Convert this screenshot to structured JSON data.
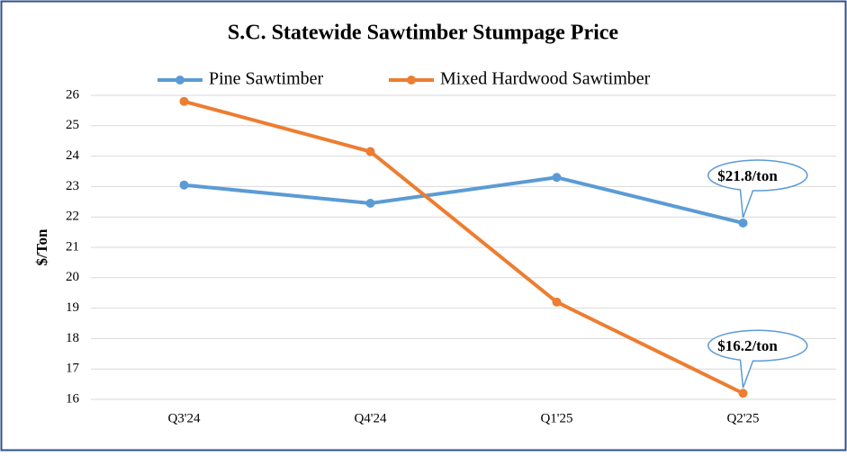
{
  "chart_data": {
    "type": "line",
    "title": "S.C. Statewide Sawtimber Stumpage Price",
    "y_label": "$/Ton",
    "categories": [
      "Q3'24",
      "Q4'24",
      "Q1'25",
      "Q2'25"
    ],
    "series": [
      {
        "name": "Pine Sawtimber",
        "color": "#5b9bd5",
        "values": [
          23.05,
          22.45,
          23.3,
          21.8
        ],
        "value_labels": [
          null,
          null,
          null,
          "$21.8/ton"
        ]
      },
      {
        "name": "Mixed Hardwood Sawtimber",
        "color": "#ed7d31",
        "values": [
          25.8,
          24.15,
          19.2,
          16.2
        ],
        "value_labels": [
          null,
          null,
          null,
          "$16.2/ton"
        ]
      }
    ],
    "ylim": [
      16,
      26
    ],
    "yticks": [
      16,
      17,
      18,
      19,
      20,
      21,
      22,
      23,
      24,
      25,
      26
    ],
    "grid": true,
    "legend": "top"
  }
}
